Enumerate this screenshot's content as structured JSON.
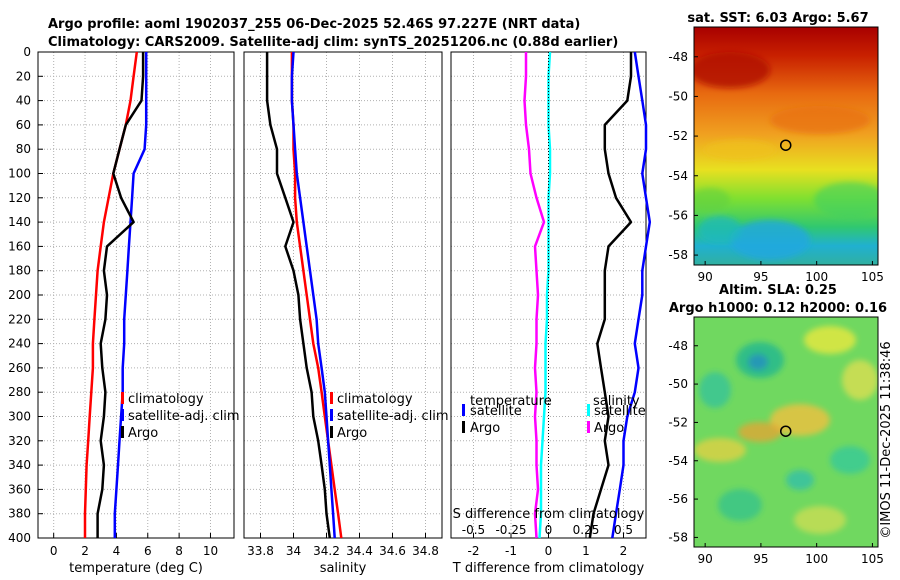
{
  "title": {
    "line1": "Argo profile: aoml 1902037_255 06-Dec-2025 52.46S 97.227E (NRT data)",
    "line2": "Climatology: CARS2009. Satellite-adj clim: synTS_20251206.nc (0.88d earlier)"
  },
  "watermark": "©IMOS 11-Dec-2025 11:38:46",
  "colors": {
    "red": "#ff0000",
    "blue": "#0000ff",
    "black": "#000000",
    "cyan": "#00ffff",
    "magenta": "#ff00ff",
    "grid": "#b0b0b0"
  },
  "chart_data": [
    {
      "type": "line",
      "id": "temperature",
      "xlabel": "temperature (deg C)",
      "xlim": [
        -1,
        11.5
      ],
      "ylim": [
        400,
        0
      ],
      "xticks": [
        "0",
        "2",
        "4",
        "6",
        "8",
        "10"
      ],
      "xtick_values": [
        0,
        2,
        4,
        6,
        8,
        10
      ],
      "yticks": [
        "0",
        "20",
        "40",
        "60",
        "80",
        "100",
        "120",
        "140",
        "160",
        "180",
        "200",
        "220",
        "240",
        "260",
        "280",
        "300",
        "320",
        "340",
        "360",
        "380",
        "400"
      ],
      "depth": [
        0,
        20,
        40,
        60,
        80,
        100,
        120,
        140,
        160,
        180,
        200,
        220,
        240,
        260,
        280,
        300,
        320,
        340,
        360,
        380,
        400
      ],
      "grid": true,
      "legend": [
        "climatology",
        "satellite-adj. clim",
        "Argo"
      ],
      "series": [
        {
          "name": "climatology",
          "color": "red",
          "values": [
            5.3,
            5.1,
            4.9,
            4.6,
            4.2,
            3.8,
            3.5,
            3.2,
            3.0,
            2.8,
            2.7,
            2.6,
            2.5,
            2.5,
            2.4,
            2.3,
            2.2,
            2.1,
            2.05,
            2.0,
            2.0
          ]
        },
        {
          "name": "satellite-adj. clim",
          "color": "blue",
          "values": [
            5.9,
            5.9,
            5.9,
            5.9,
            5.8,
            5.1,
            5.0,
            4.9,
            4.8,
            4.7,
            4.6,
            4.5,
            4.5,
            4.4,
            4.4,
            4.3,
            4.2,
            4.1,
            4.0,
            3.9,
            3.9
          ]
        },
        {
          "name": "Argo",
          "color": "black",
          "values": [
            5.7,
            5.7,
            5.6,
            4.6,
            4.2,
            3.8,
            4.3,
            5.1,
            3.4,
            3.2,
            3.4,
            3.3,
            3.0,
            3.1,
            3.3,
            3.2,
            3.0,
            3.2,
            3.1,
            2.8,
            2.8
          ]
        }
      ]
    },
    {
      "type": "line",
      "id": "salinity",
      "xlabel": "salinity",
      "xlim": [
        33.7,
        34.9
      ],
      "ylim": [
        400,
        0
      ],
      "xticks": [
        "33.8",
        "34",
        "34.2",
        "34.4",
        "34.6",
        "34.8"
      ],
      "xtick_values": [
        33.8,
        34.0,
        34.2,
        34.4,
        34.6,
        34.8
      ],
      "depth": [
        0,
        20,
        40,
        60,
        80,
        100,
        120,
        140,
        160,
        180,
        200,
        220,
        240,
        260,
        280,
        300,
        320,
        340,
        360,
        380,
        400
      ],
      "grid": true,
      "legend": [
        "climatology",
        "satellite-adj. clim",
        "Argo"
      ],
      "series": [
        {
          "name": "climatology",
          "color": "red",
          "values": [
            33.99,
            33.99,
            33.99,
            34.0,
            34.0,
            34.01,
            34.01,
            34.02,
            34.04,
            34.06,
            34.08,
            34.1,
            34.12,
            34.15,
            34.17,
            34.19,
            34.21,
            34.23,
            34.25,
            34.27,
            34.29
          ]
        },
        {
          "name": "satellite-adj. clim",
          "color": "blue",
          "values": [
            34.0,
            33.99,
            33.99,
            34.0,
            34.01,
            34.02,
            34.04,
            34.06,
            34.08,
            34.1,
            34.12,
            34.14,
            34.15,
            34.17,
            34.19,
            34.2,
            34.21,
            34.22,
            34.23,
            34.24,
            34.25
          ]
        },
        {
          "name": "Argo",
          "color": "black",
          "values": [
            33.84,
            33.84,
            33.84,
            33.86,
            33.9,
            33.9,
            33.95,
            34.0,
            33.95,
            34.0,
            34.03,
            34.04,
            34.06,
            34.08,
            34.11,
            34.12,
            34.15,
            34.17,
            34.19,
            34.2,
            34.22
          ]
        }
      ]
    },
    {
      "type": "line",
      "id": "difference",
      "xlabel": "T difference from climatology",
      "xlabel_top": "S difference from climatology",
      "xlim": [
        -2.6,
        2.6
      ],
      "ylim": [
        400,
        0
      ],
      "xticks": [
        "-2",
        "-1",
        "0",
        "1",
        "2"
      ],
      "xtick_values": [
        -2,
        -1,
        0,
        1,
        2
      ],
      "xticks_top": [
        "-0.5",
        "-0.25",
        "0",
        "0.25",
        "0.5"
      ],
      "depth": [
        0,
        20,
        40,
        60,
        80,
        100,
        120,
        140,
        160,
        180,
        200,
        220,
        240,
        260,
        280,
        300,
        320,
        340,
        360,
        380,
        400
      ],
      "grid": true,
      "legend_temperature": {
        "header": "temperature",
        "entries": [
          "satellite",
          "Argo"
        ]
      },
      "legend_salinity": {
        "header": "salinity",
        "entries": [
          "satellite",
          "Argo"
        ]
      },
      "series": [
        {
          "name": "temperature satellite",
          "color": "blue",
          "values": [
            2.3,
            2.4,
            2.5,
            2.6,
            2.6,
            2.5,
            2.6,
            2.7,
            2.6,
            2.5,
            2.5,
            2.4,
            2.3,
            2.4,
            2.3,
            2.1,
            2.0,
            2.0,
            1.9,
            1.8,
            1.7
          ]
        },
        {
          "name": "temperature Argo",
          "color": "black",
          "values": [
            2.2,
            2.2,
            2.1,
            1.5,
            1.5,
            1.6,
            1.8,
            2.2,
            1.6,
            1.5,
            1.5,
            1.5,
            1.3,
            1.4,
            1.5,
            1.6,
            1.5,
            1.6,
            1.4,
            1.2,
            1.1
          ]
        },
        {
          "name": "salinity satellite",
          "color": "cyan",
          "values": [
            0.01,
            0.0,
            0.0,
            0.0,
            0.01,
            0.01,
            0.0,
            0.0,
            0.0,
            0.0,
            -0.01,
            -0.01,
            -0.02,
            -0.02,
            -0.02,
            -0.03,
            -0.04,
            -0.05,
            -0.05,
            -0.05,
            -0.06
          ]
        },
        {
          "name": "salinity Argo",
          "color": "magenta",
          "values": [
            -0.15,
            -0.15,
            -0.16,
            -0.15,
            -0.13,
            -0.12,
            -0.08,
            -0.03,
            -0.09,
            -0.08,
            -0.07,
            -0.08,
            -0.08,
            -0.09,
            -0.08,
            -0.09,
            -0.08,
            -0.08,
            -0.07,
            -0.09,
            -0.08
          ]
        }
      ]
    },
    {
      "type": "heatmap",
      "id": "sst-map",
      "title": "sat. SST: 6.03 Argo: 5.67",
      "xlim": [
        89,
        105.5
      ],
      "ylim": [
        -58.5,
        -46.5
      ],
      "xticks": [
        "90",
        "95",
        "100",
        "105"
      ],
      "xtick_values": [
        90,
        95,
        100,
        105
      ],
      "yticks": [
        "-48",
        "-50",
        "-52",
        "-54",
        "-56",
        "-58"
      ],
      "ytick_values": [
        -48,
        -50,
        -52,
        -54,
        -56,
        -58
      ],
      "marker": {
        "lon": 97.227,
        "lat": -52.46
      }
    },
    {
      "type": "heatmap",
      "id": "sla-map",
      "title_line1": "Altim. SLA: 0.25",
      "title_line2": "Argo h1000: 0.12 h2000: 0.16",
      "xlim": [
        89,
        105.5
      ],
      "ylim": [
        -58.5,
        -46.5
      ],
      "xticks": [
        "90",
        "95",
        "100",
        "105"
      ],
      "xtick_values": [
        90,
        95,
        100,
        105
      ],
      "yticks": [
        "-48",
        "-50",
        "-52",
        "-54",
        "-56",
        "-58"
      ],
      "ytick_values": [
        -48,
        -50,
        -52,
        -54,
        -56,
        -58
      ],
      "marker": {
        "lon": 97.227,
        "lat": -52.46
      }
    }
  ]
}
